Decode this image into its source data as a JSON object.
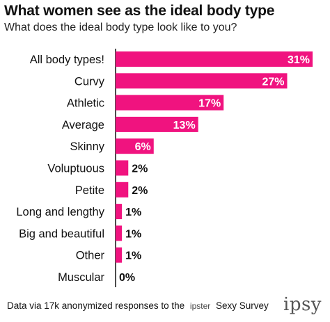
{
  "title": "What women see as the ideal body type",
  "subtitle": "What does the ideal body type look like to you?",
  "footer": {
    "text_before": "Data via 17k anonymized responses to the",
    "small_brand": "ipster",
    "survey_name": "Sexy Survey"
  },
  "logo_text": "ipsy",
  "colors": {
    "bar": "#F0137F",
    "axis": "#111111",
    "text": "#111111"
  },
  "chart_data": {
    "type": "bar",
    "orientation": "horizontal",
    "title": "What women see as the ideal body type",
    "subtitle": "What does the ideal body type look like to you?",
    "categories": [
      "All body types!",
      "Curvy",
      "Athletic",
      "Average",
      "Skinny",
      "Voluptuous",
      "Petite",
      "Long and lengthy",
      "Big and beautiful",
      "Other",
      "Muscular"
    ],
    "values": [
      31,
      27,
      17,
      13,
      6,
      2,
      2,
      1,
      1,
      1,
      0
    ],
    "value_labels": [
      "31%",
      "27%",
      "17%",
      "13%",
      "6%",
      "2%",
      "2%",
      "1%",
      "1%",
      "1%",
      "0%"
    ],
    "xlim": [
      0,
      31
    ],
    "grid": false,
    "legend": "none"
  }
}
